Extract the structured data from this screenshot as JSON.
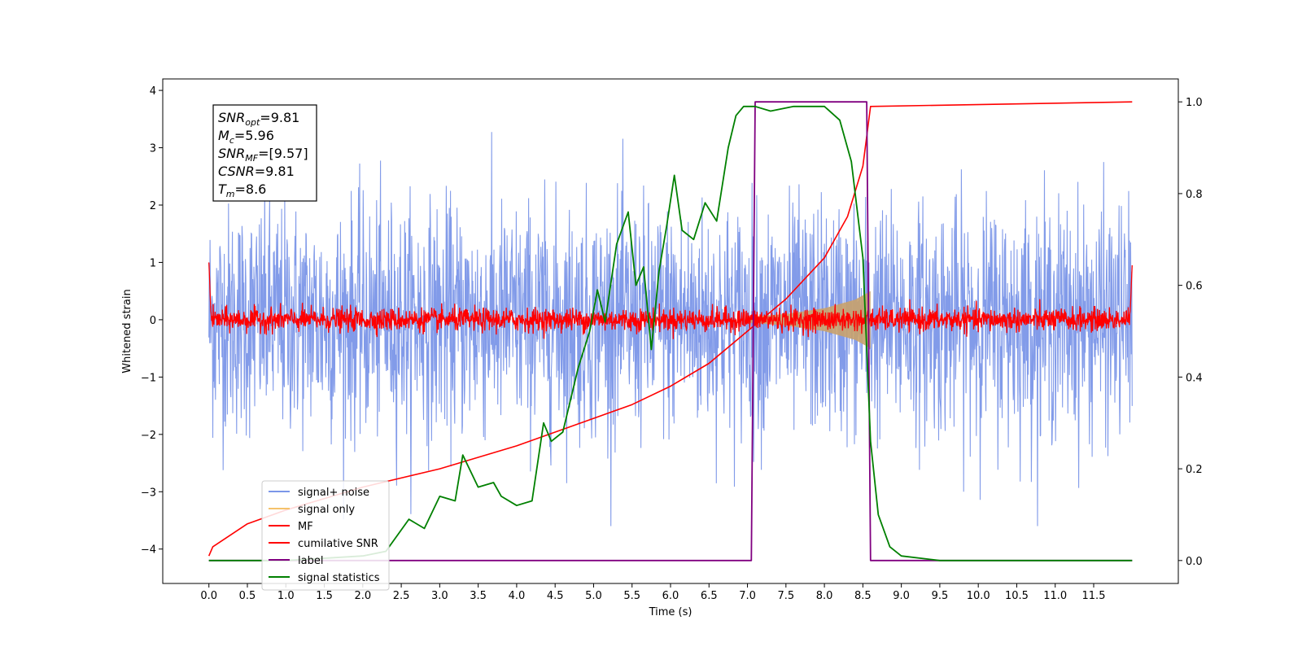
{
  "chart_data": {
    "type": "line",
    "xlabel": "Time (s)",
    "ylabel": "Whitened strain",
    "xlim": [
      -0.6,
      12.6
    ],
    "ylim": [
      -4.6,
      4.2
    ],
    "y2lim": [
      -0.05,
      1.05
    ],
    "x_ticks": [
      "0.0",
      "0.5",
      "1.0",
      "1.5",
      "2.0",
      "2.5",
      "3.0",
      "3.5",
      "4.0",
      "4.5",
      "5.0",
      "5.5",
      "6.0",
      "6.5",
      "7.0",
      "7.5",
      "8.0",
      "8.5",
      "9.0",
      "9.5",
      "10.0",
      "10.5",
      "11.0",
      "11.5"
    ],
    "y_ticks": [
      "−4",
      "−3",
      "−2",
      "−1",
      "0",
      "1",
      "2",
      "3",
      "4"
    ],
    "y2_ticks": [
      "0.0",
      "0.2",
      "0.4",
      "0.6",
      "0.8",
      "1.0"
    ],
    "annotation": [
      {
        "base": "SNR",
        "sub": "opt",
        "value": "=9.81"
      },
      {
        "base": "M",
        "sub": "c",
        "value": "=5.96"
      },
      {
        "base": "SNR",
        "sub": "MF",
        "value": "=[9.57]"
      },
      {
        "base": "CSNR",
        "sub": "",
        "value": "=9.81"
      },
      {
        "base": "T",
        "sub": "m",
        "value": "=8.6"
      }
    ],
    "legend": {
      "position": "lower-left",
      "entries": [
        {
          "label": "signal+ noise",
          "color": "#7b96e8"
        },
        {
          "label": "signal only",
          "color": "#f5c26b"
        },
        {
          "label": "MF",
          "color": "#ff0000"
        },
        {
          "label": "cumilative SNR",
          "color": "#ff0000"
        },
        {
          "label": "label",
          "color": "#800080"
        },
        {
          "label": "signal statistics",
          "color": "#008000"
        }
      ]
    },
    "series": [
      {
        "name": "signal+ noise",
        "axis": "left",
        "color": "#7b96e8",
        "x_range": [
          0,
          12
        ],
        "amplitude_std": 1.0
      },
      {
        "name": "signal only",
        "axis": "left",
        "color": "#c9a26b",
        "x_range": [
          7.0,
          8.6
        ],
        "envelope": [
          [
            7.0,
            0.05
          ],
          [
            7.5,
            0.1
          ],
          [
            8.0,
            0.2
          ],
          [
            8.4,
            0.35
          ],
          [
            8.6,
            0.5
          ]
        ]
      },
      {
        "name": "MF",
        "axis": "left",
        "color": "#ff0000",
        "x_range": [
          0,
          12
        ],
        "amplitude_std": 0.1
      },
      {
        "name": "cumilative SNR",
        "axis": "right",
        "color": "#ff0000",
        "x": [
          0.0,
          0.05,
          0.5,
          1.0,
          2.0,
          3.0,
          4.0,
          5.0,
          5.5,
          6.0,
          6.5,
          7.0,
          7.5,
          8.0,
          8.3,
          8.5,
          8.6,
          12.0
        ],
        "y": [
          0.01,
          0.03,
          0.08,
          0.11,
          0.16,
          0.2,
          0.25,
          0.31,
          0.34,
          0.38,
          0.43,
          0.5,
          0.57,
          0.66,
          0.75,
          0.86,
          0.99,
          1.0
        ]
      },
      {
        "name": "label",
        "axis": "right",
        "color": "#800080",
        "x": [
          0.0,
          7.05,
          7.1,
          8.55,
          8.6,
          12.0
        ],
        "y": [
          0.0,
          0.0,
          1.0,
          1.0,
          0.0,
          0.0
        ]
      },
      {
        "name": "signal statistics",
        "axis": "right",
        "color": "#008000",
        "x": [
          0.0,
          1.0,
          2.0,
          2.3,
          2.6,
          2.8,
          3.0,
          3.2,
          3.3,
          3.5,
          3.7,
          3.8,
          4.0,
          4.2,
          4.35,
          4.45,
          4.6,
          4.8,
          4.95,
          5.05,
          5.15,
          5.3,
          5.45,
          5.55,
          5.65,
          5.75,
          5.85,
          5.95,
          6.05,
          6.15,
          6.3,
          6.45,
          6.6,
          6.75,
          6.85,
          6.95,
          7.1,
          7.3,
          7.6,
          8.0,
          8.2,
          8.35,
          8.5,
          8.6,
          8.7,
          8.85,
          9.0,
          9.5,
          10.0,
          12.0
        ],
        "y": [
          0.0,
          0.0,
          0.01,
          0.02,
          0.09,
          0.07,
          0.14,
          0.13,
          0.23,
          0.16,
          0.17,
          0.14,
          0.12,
          0.13,
          0.3,
          0.26,
          0.28,
          0.42,
          0.5,
          0.59,
          0.52,
          0.69,
          0.76,
          0.6,
          0.64,
          0.46,
          0.63,
          0.73,
          0.84,
          0.72,
          0.7,
          0.78,
          0.74,
          0.9,
          0.97,
          0.99,
          0.99,
          0.98,
          0.99,
          0.99,
          0.96,
          0.87,
          0.66,
          0.26,
          0.1,
          0.03,
          0.01,
          0.0,
          0.0,
          0.0
        ]
      }
    ]
  }
}
